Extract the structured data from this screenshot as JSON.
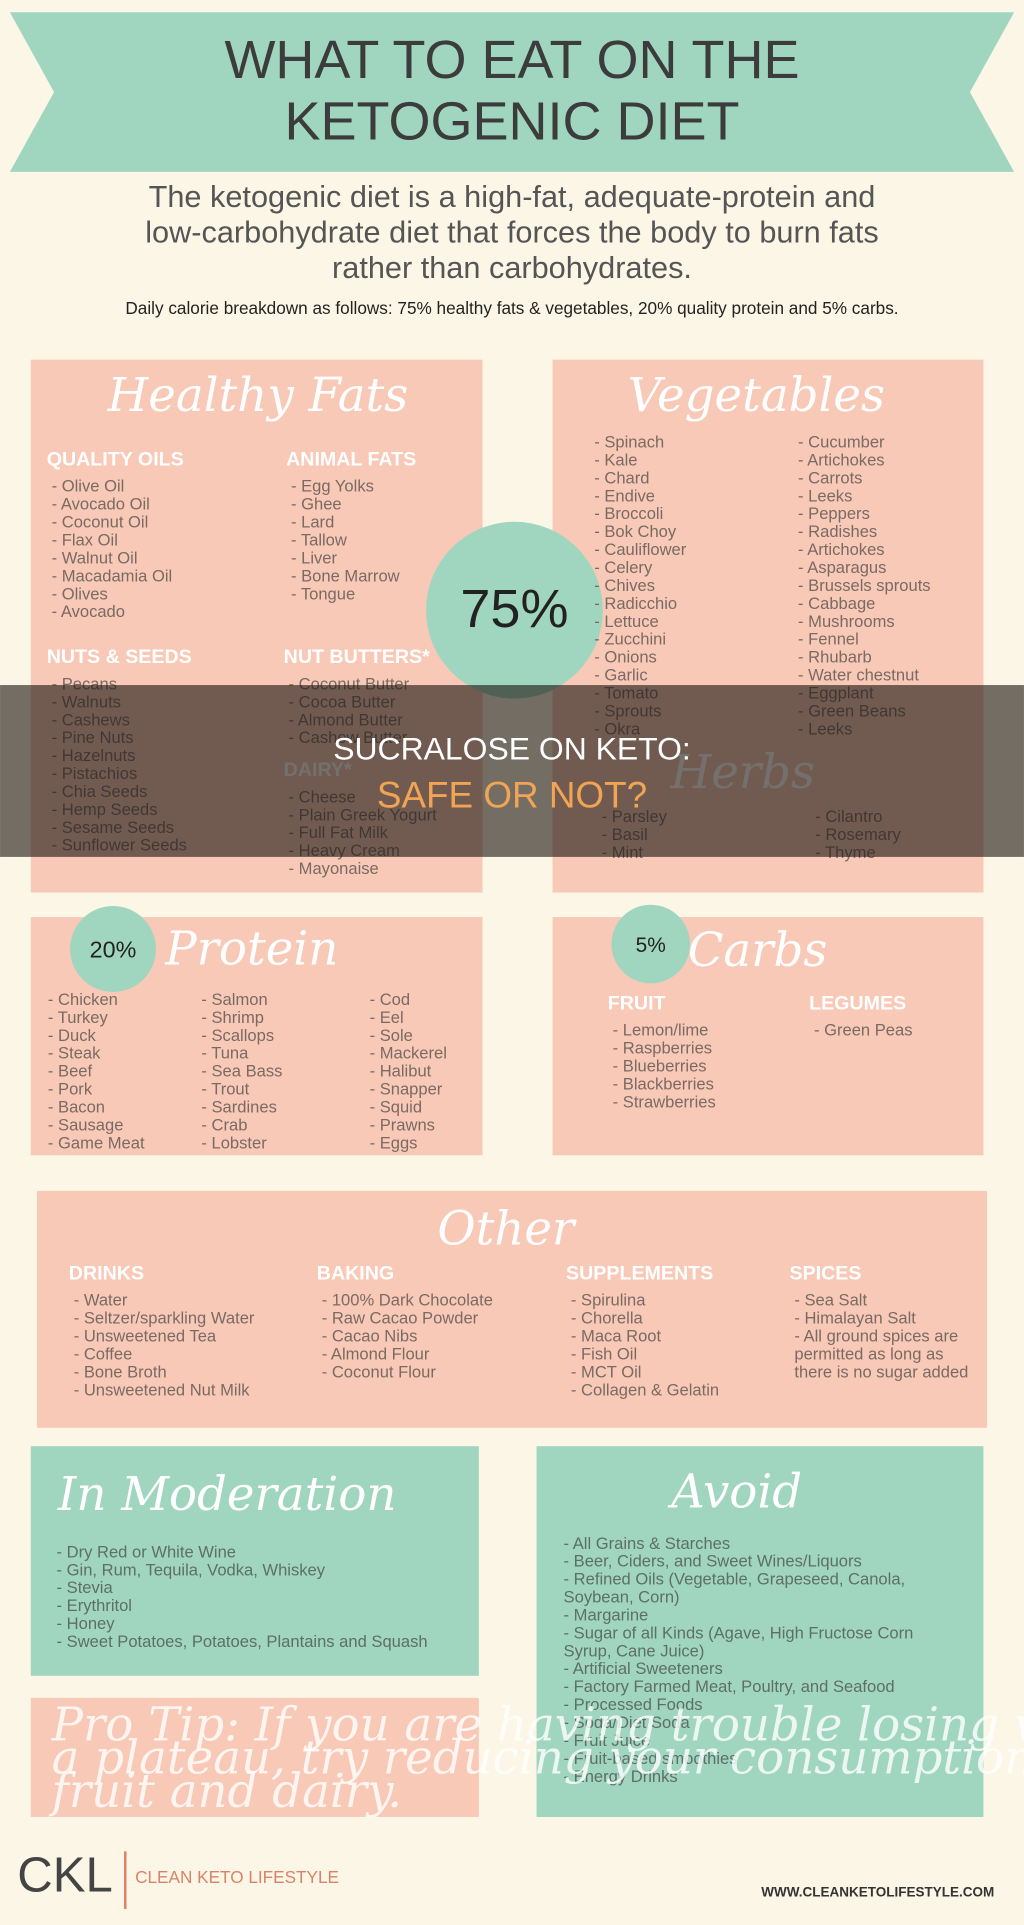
{
  "header": {
    "title_lines": [
      "WHAT TO EAT ON THE",
      "KETOGENIC DIET"
    ],
    "description_lines": [
      "The ketogenic diet is a high-fat, adequate-protein and",
      "low-carbohydrate diet that forces the body to burn fats",
      "rather than carbohydrates."
    ],
    "breakdown": "Daily calorie breakdown as follows: 75% healthy fats & vegetables, 20% quality protein and 5% carbs."
  },
  "sections": {
    "healthy_fats": {
      "title": "Healthy Fats",
      "groups": [
        {
          "heading": "QUALITY OILS",
          "items": [
            "- Olive Oil",
            "- Avocado Oil",
            "- Coconut Oil",
            "- Flax Oil",
            "- Walnut Oil",
            "- Macadamia Oil",
            "- Olives",
            "- Avocado"
          ]
        },
        {
          "heading": "ANIMAL FATS",
          "items": [
            "- Egg Yolks",
            "- Ghee",
            "- Lard",
            "- Tallow",
            "- Liver",
            "- Bone Marrow",
            "- Tongue"
          ]
        },
        {
          "heading": "NUTS & SEEDS",
          "items": [
            "- Pecans",
            "- Walnuts",
            "- Cashews",
            "- Pine Nuts",
            "- Hazelnuts",
            "- Pistachios",
            "- Chia Seeds",
            "- Hemp Seeds",
            "- Sesame Seeds",
            "- Sunflower Seeds"
          ]
        },
        {
          "heading": "NUT BUTTERS*",
          "items": [
            "- Coconut Butter",
            "- Cocoa Butter",
            "- Almond Butter",
            "- Cashew Butter"
          ]
        },
        {
          "heading": "DAIRY*",
          "items": [
            "- Cheese",
            "- Plain Greek Yogurt",
            "- Full Fat Milk",
            "- Heavy Cream",
            "- Mayonaise"
          ]
        }
      ]
    },
    "fats_percent": "75%",
    "vegetables": {
      "title": "Vegetables",
      "groups": [
        {
          "items": [
            "- Spinach",
            "- Kale",
            "- Chard",
            "- Endive",
            "- Broccoli",
            "- Bok Choy",
            "- Cauliflower",
            "- Celery",
            "- Chives",
            "- Radicchio",
            "- Lettuce",
            "- Zucchini",
            "- Onions",
            "- Garlic",
            "- Tomato",
            "- Sprouts",
            "- Okra"
          ]
        },
        {
          "items": [
            "- Cucumber",
            "- Artichokes",
            "- Carrots",
            "- Leeks",
            "- Peppers",
            "- Radishes",
            "- Artichokes",
            "- Asparagus",
            "- Brussels sprouts",
            "- Cabbage",
            "- Mushrooms",
            "- Fennel",
            "- Rhubarb",
            "- Water chestnut",
            "- Eggplant",
            "- Green Beans",
            "- Leeks"
          ]
        }
      ]
    },
    "herbs": {
      "title": "Herbs",
      "groups": [
        {
          "items": [
            "- Parsley",
            "- Basil",
            "- Mint"
          ]
        },
        {
          "items": [
            "- Cilantro",
            "- Rosemary",
            "- Thyme"
          ]
        }
      ]
    },
    "protein": {
      "title": "Protein",
      "percent": "20%",
      "groups": [
        {
          "items": [
            "- Chicken",
            "- Turkey",
            "- Duck",
            "- Steak",
            "- Beef",
            "- Pork",
            "- Bacon",
            "- Sausage",
            "- Game Meat"
          ]
        },
        {
          "items": [
            "- Salmon",
            "- Shrimp",
            "- Scallops",
            "- Tuna",
            "- Sea Bass",
            "- Trout",
            "- Sardines",
            "- Crab",
            "- Lobster"
          ]
        },
        {
          "items": [
            "- Cod",
            "- Eel",
            "- Sole",
            "- Mackerel",
            "- Halibut",
            "- Snapper",
            "- Squid",
            "- Prawns",
            "- Eggs"
          ]
        }
      ]
    },
    "carbs": {
      "title": "Carbs",
      "percent": "5%",
      "groups": [
        {
          "heading": "FRUIT",
          "items": [
            "- Lemon/lime",
            "- Raspberries",
            "- Blueberries",
            "- Blackberries",
            "- Strawberries"
          ]
        },
        {
          "heading": "LEGUMES",
          "items": [
            "- Green Peas"
          ]
        }
      ]
    },
    "other": {
      "title": "Other",
      "groups": [
        {
          "heading": "DRINKS",
          "items": [
            "- Water",
            "- Seltzer/sparkling Water",
            "- Unsweetened Tea",
            "- Coffee",
            "- Bone Broth",
            "- Unsweetened Nut Milk"
          ]
        },
        {
          "heading": "BAKING",
          "items": [
            "- 100% Dark Chocolate",
            "- Raw Cacao Powder",
            "- Cacao Nibs",
            "- Almond Flour",
            "- Coconut Flour"
          ]
        },
        {
          "heading": "SUPPLEMENTS",
          "items": [
            "- Spirulina",
            "- Chorella",
            "- Maca Root",
            "- Fish Oil",
            "- MCT Oil",
            "- Collagen & Gelatin"
          ]
        },
        {
          "heading": "SPICES",
          "items": [
            "- Sea Salt",
            "- Himalayan Salt",
            "- All ground spices are",
            "permitted as long as",
            "there is no sugar added"
          ]
        }
      ]
    },
    "moderation": {
      "title": "In Moderation",
      "groups": [
        {
          "items": [
            "- Dry Red or White Wine",
            "- Gin, Rum, Tequila, Vodka, Whiskey",
            "- Stevia",
            "- Erythritol",
            "- Honey",
            "- Sweet Potatoes, Potatoes, Plantains and Squash"
          ]
        }
      ]
    },
    "pro_tip": [
      "Pro Tip: If you are having trouble losing weight or hit",
      "a plateau, try reducing your consumption of nuts,",
      "fruit and dairy."
    ],
    "avoid": {
      "title": "Avoid",
      "groups": [
        {
          "items": [
            "- All Grains & Starches",
            "- Beer, Ciders, and Sweet Wines/Liquors",
            "- Refined Oils (Vegetable, Grapeseed, Canola,",
            "Soybean, Corn)",
            "- Margarine",
            "- Sugar of all Kinds (Agave, High Fructose Corn",
            "Syrup, Cane Juice)",
            "- Artificial Sweeteners",
            "- Factory Farmed Meat, Poultry, and Seafood",
            "- Processed Foods",
            "- Soda/Diet Soda",
            "- Fruit Juice",
            "- Fruit-based smoothies",
            "- Energy Drinks"
          ]
        }
      ]
    }
  },
  "footer": {
    "logo": "CKL",
    "brand": "CLEAN KETO LIFESTYLE",
    "url": "WWW.CLEANKETOLIFESTYLE.COM"
  },
  "overlay": {
    "line1": "SUCRALOSE ON KETO:",
    "line2": "SAFE OR NOT?"
  }
}
